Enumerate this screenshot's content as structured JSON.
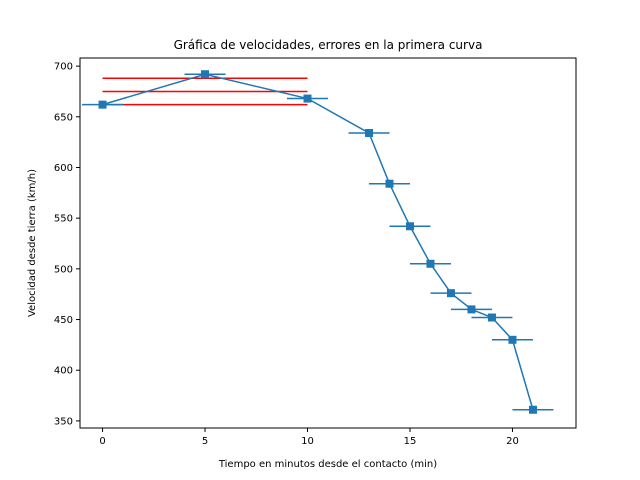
{
  "chart_data": {
    "type": "line",
    "title": "Gráfica de velocidades, errores en la primera curva",
    "xlabel": "Tiempo en minutos desde el contacto (min)",
    "ylabel": "Velocidad desde tierra (km/h)",
    "xlim": [
      -1.1,
      23.1
    ],
    "ylim": [
      343,
      708
    ],
    "xticks": [
      0,
      5,
      10,
      15,
      20
    ],
    "yticks": [
      350,
      400,
      450,
      500,
      550,
      600,
      650,
      700
    ],
    "grid": false,
    "legend": false,
    "series": [
      {
        "color": "#1f77b4",
        "marker": "square",
        "x": [
          0,
          5,
          10,
          13,
          14,
          15,
          16,
          17,
          18,
          19,
          20,
          21
        ],
        "y": [
          662,
          692,
          668,
          634,
          584,
          542,
          505,
          476,
          460,
          452,
          430,
          361
        ],
        "xerr": 1
      }
    ],
    "reference_lines": {
      "color": "#ff0000",
      "y": [
        688,
        675,
        662
      ],
      "x_start": 0,
      "x_end": 10
    }
  }
}
